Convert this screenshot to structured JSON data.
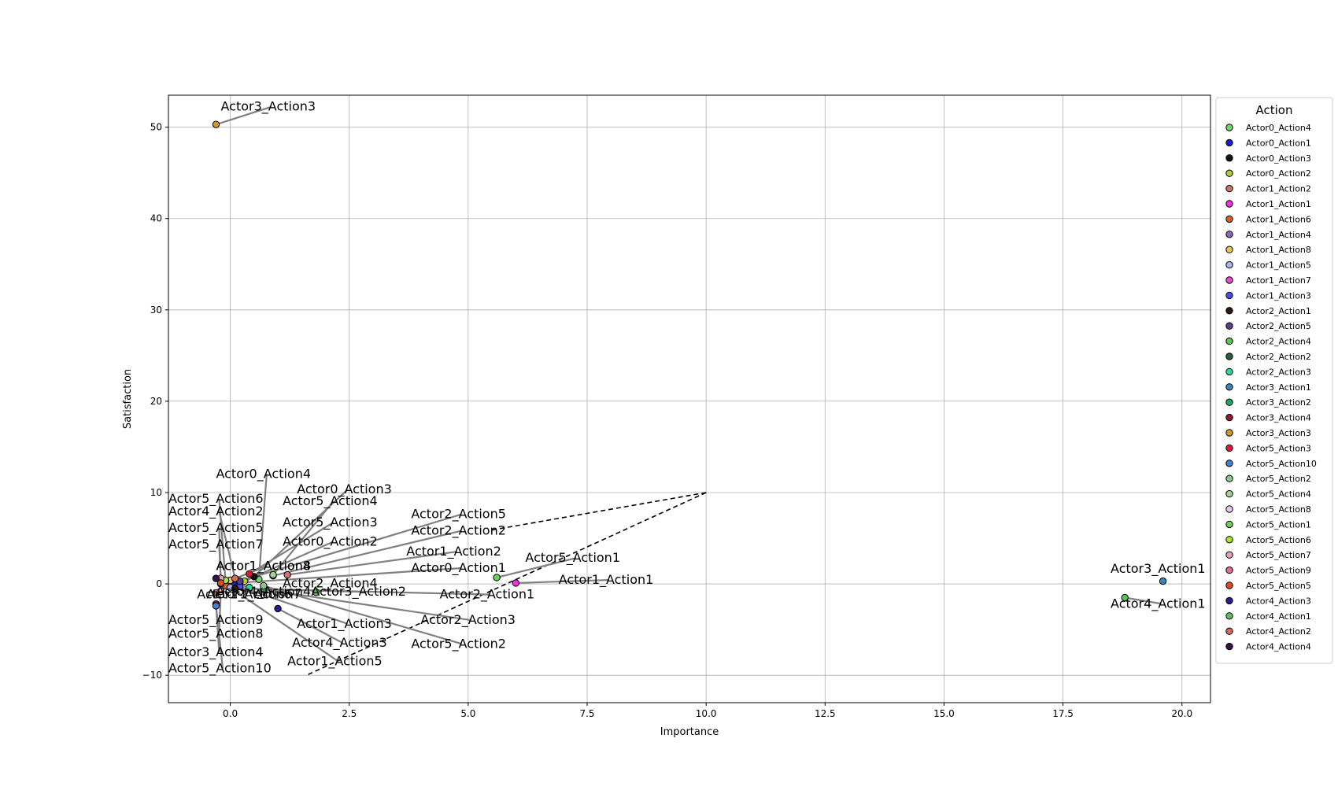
{
  "chart_data": {
    "type": "scatter",
    "title": "",
    "xlabel": "Importance",
    "ylabel": "Satisfaction",
    "xlim": [
      -1.3,
      20.6
    ],
    "ylim": [
      -13,
      53.5
    ],
    "xticks": [
      0.0,
      2.5,
      5.0,
      7.5,
      10.0,
      12.5,
      15.0,
      17.5,
      20.0
    ],
    "xtick_labels": [
      "0.0",
      "2.5",
      "5.0",
      "7.5",
      "10.0",
      "12.5",
      "15.0",
      "17.5",
      "20.0"
    ],
    "yticks": [
      -10,
      0,
      10,
      20,
      30,
      40,
      50
    ],
    "ytick_labels": [
      "−10",
      "0",
      "10",
      "20",
      "30",
      "40",
      "50"
    ],
    "grid": true,
    "legend": {
      "title": "Action",
      "placement": "outside-right"
    },
    "reference_lines": [
      {
        "style": "dashed",
        "color": "#000000",
        "points": [
          [
            10,
            10
          ],
          [
            5.5,
            5.9
          ]
        ]
      },
      {
        "style": "dashed",
        "color": "#000000",
        "points": [
          [
            10,
            10
          ],
          [
            1.6,
            -10
          ]
        ]
      }
    ],
    "points": [
      {
        "name": "Actor0_Action4",
        "x": 0.6,
        "y": 0.5,
        "color": "#6fd36f",
        "label_pos": [
          -0.3,
          11.6
        ],
        "label_anchor": "start"
      },
      {
        "name": "Actor0_Action1",
        "x": 0.1,
        "y": 0.1,
        "color": "#1a1acc",
        "label_pos": [
          3.8,
          1.3
        ],
        "label_anchor": "start"
      },
      {
        "name": "Actor0_Action3",
        "x": 0.5,
        "y": 0.8,
        "color": "#111111",
        "label_pos": [
          1.4,
          9.9
        ],
        "label_anchor": "start"
      },
      {
        "name": "Actor0_Action2",
        "x": 0.3,
        "y": 0.3,
        "color": "#b5c830",
        "label_pos": [
          1.1,
          4.2
        ],
        "label_anchor": "start"
      },
      {
        "name": "Actor1_Action2",
        "x": 1.2,
        "y": 1.0,
        "color": "#c9766e",
        "label_pos": [
          3.7,
          3.1
        ],
        "label_anchor": "start"
      },
      {
        "name": "Actor1_Action1",
        "x": 6.0,
        "y": 0.1,
        "color": "#ee33dd",
        "label_pos": [
          6.9,
          0.0
        ],
        "label_anchor": "start"
      },
      {
        "name": "Actor1_Action6",
        "x": -0.1,
        "y": -0.2,
        "color": "#d6612a",
        "label_pos": [
          -0.7,
          -1.6
        ],
        "label_anchor": "start"
      },
      {
        "name": "Actor1_Action4",
        "x": 0.2,
        "y": 0.2,
        "color": "#8a6ab7",
        "label_pos": [
          -0.3,
          1.5
        ],
        "label_anchor": "start"
      },
      {
        "name": "Actor1_Action8",
        "x": 0.0,
        "y": 0.4,
        "color": "#e8c25a",
        "label_pos": [
          -0.3,
          1.5
        ],
        "label_anchor": "start"
      },
      {
        "name": "Actor1_Action5",
        "x": 0.0,
        "y": -0.4,
        "color": "#aab3e6",
        "label_pos": [
          1.2,
          -8.9
        ],
        "label_anchor": "start"
      },
      {
        "name": "Actor1_Action7",
        "x": -0.2,
        "y": 0.0,
        "color": "#e64fc8",
        "label_pos": [
          -0.5,
          -1.6
        ],
        "label_anchor": "start"
      },
      {
        "name": "Actor1_Action3",
        "x": 0.2,
        "y": -0.3,
        "color": "#4a4fe0",
        "label_pos": [
          1.4,
          -4.8
        ],
        "label_anchor": "start"
      },
      {
        "name": "Actor2_Action1",
        "x": 0.1,
        "y": -0.5,
        "color": "#2a1a10",
        "label_pos": [
          4.4,
          -1.6
        ],
        "label_anchor": "start"
      },
      {
        "name": "Actor2_Action5",
        "x": 0.2,
        "y": 0.3,
        "color": "#5b3f8f",
        "label_pos": [
          3.8,
          7.2
        ],
        "label_anchor": "start"
      },
      {
        "name": "Actor2_Action4",
        "x": 1.8,
        "y": -0.9,
        "color": "#5dc25a",
        "label_pos": [
          1.1,
          -0.4
        ],
        "label_anchor": "start"
      },
      {
        "name": "Actor2_Action2",
        "x": 0.9,
        "y": 0.9,
        "color": "#2d5d3f",
        "label_pos": [
          3.8,
          5.4
        ],
        "label_anchor": "start"
      },
      {
        "name": "Actor2_Action3",
        "x": 0.4,
        "y": -0.4,
        "color": "#2bd99a",
        "label_pos": [
          4.0,
          -4.4
        ],
        "label_anchor": "start"
      },
      {
        "name": "Actor3_Action1",
        "x": 19.6,
        "y": 0.3,
        "color": "#3a84b8",
        "label_pos": [
          18.5,
          1.2
        ],
        "label_anchor": "start"
      },
      {
        "name": "Actor3_Action2",
        "x": 0.7,
        "y": -0.6,
        "color": "#1aa860",
        "label_pos": [
          1.7,
          -1.3
        ],
        "label_anchor": "start"
      },
      {
        "name": "Actor3_Action4",
        "x": -0.3,
        "y": -2.2,
        "color": "#8a1a30",
        "label_pos": [
          -1.3,
          -7.9
        ],
        "label_anchor": "start"
      },
      {
        "name": "Actor3_Action3",
        "x": -0.3,
        "y": 50.3,
        "color": "#d39a2a",
        "label_pos": [
          -0.2,
          51.8
        ],
        "label_anchor": "start"
      },
      {
        "name": "Actor5_Action3",
        "x": 0.4,
        "y": 1.1,
        "color": "#e01a3a",
        "label_pos": [
          1.1,
          6.3
        ],
        "label_anchor": "start"
      },
      {
        "name": "Actor5_Action10",
        "x": -0.3,
        "y": -2.4,
        "color": "#3f7fd6",
        "label_pos": [
          -1.3,
          -9.7
        ],
        "label_anchor": "start"
      },
      {
        "name": "Actor5_Action2",
        "x": 0.7,
        "y": -0.2,
        "color": "#8fc48f",
        "label_pos": [
          3.8,
          -7.0
        ],
        "label_anchor": "start"
      },
      {
        "name": "Actor5_Action4",
        "x": 0.9,
        "y": 1.0,
        "color": "#a4d39a",
        "label_pos": [
          1.1,
          8.6
        ],
        "label_anchor": "start"
      },
      {
        "name": "Actor5_Action8",
        "x": -0.2,
        "y": -0.8,
        "color": "#e6c8f0",
        "label_pos": [
          -1.3,
          -5.9
        ],
        "label_anchor": "start"
      },
      {
        "name": "Actor5_Action1",
        "x": 5.6,
        "y": 0.7,
        "color": "#6fcf5a",
        "label_pos": [
          6.2,
          2.4
        ],
        "label_anchor": "start"
      },
      {
        "name": "Actor5_Action6",
        "x": -0.1,
        "y": 0.4,
        "color": "#a8e82a",
        "label_pos": [
          -1.3,
          8.9
        ],
        "label_anchor": "start"
      },
      {
        "name": "Actor5_Action7",
        "x": -0.2,
        "y": 0.6,
        "color": "#e3a0b8",
        "label_pos": [
          -1.3,
          3.9
        ],
        "label_anchor": "start"
      },
      {
        "name": "Actor5_Action9",
        "x": -0.3,
        "y": -1.0,
        "color": "#e86a9a",
        "label_pos": [
          -1.3,
          -4.4
        ],
        "label_anchor": "start"
      },
      {
        "name": "Actor5_Action5",
        "x": -0.2,
        "y": 0.1,
        "color": "#e04a1a",
        "label_pos": [
          -1.3,
          5.7
        ],
        "label_anchor": "start"
      },
      {
        "name": "Actor4_Action3",
        "x": 1.0,
        "y": -2.7,
        "color": "#2a1a8a",
        "label_pos": [
          1.3,
          -6.9
        ],
        "label_anchor": "start"
      },
      {
        "name": "Actor4_Action1",
        "x": 18.8,
        "y": -1.5,
        "color": "#5fbf5a",
        "label_pos": [
          18.5,
          -2.6
        ],
        "label_anchor": "start"
      },
      {
        "name": "Actor4_Action2",
        "x": 0.1,
        "y": 0.6,
        "color": "#d46a60",
        "label_pos": [
          -1.3,
          7.5
        ],
        "label_anchor": "start"
      },
      {
        "name": "Actor4_Action4",
        "x": -0.3,
        "y": 0.6,
        "color": "#3a0f4a",
        "label_pos": [
          -0.3,
          -1.3
        ],
        "label_anchor": "start"
      }
    ]
  }
}
